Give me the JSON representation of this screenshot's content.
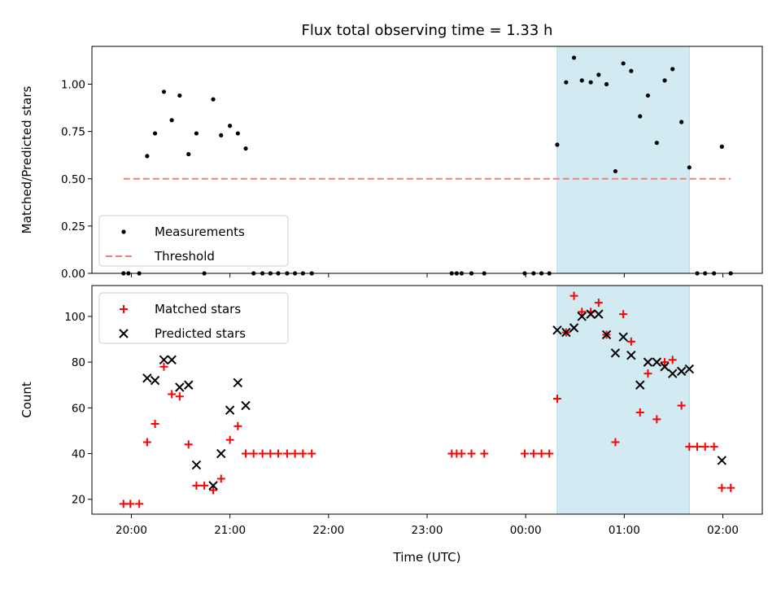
{
  "title": "Flux total observing time = 1.33 h",
  "colors": {
    "shade": "#add8e6",
    "threshold": "#f08080",
    "matched": "#ff0000",
    "predicted": "#000000",
    "measure": "#000000"
  },
  "chart_data": [
    {
      "type": "scatter",
      "ylabel": "Matched/Predicted stars",
      "xlabel": "",
      "xlim": [
        19.6,
        26.4
      ],
      "ylim": [
        0.0,
        1.2
      ],
      "yticks": [
        "0.00",
        "0.25",
        "0.50",
        "0.75",
        "1.00"
      ],
      "yticks_values": [
        0.0,
        0.25,
        0.5,
        0.75,
        1.0
      ],
      "shaded_region": [
        24.32,
        25.66
      ],
      "legend": {
        "position": "lower-left",
        "entries": [
          "Measurements",
          "Threshold"
        ]
      },
      "threshold": {
        "name": "Threshold",
        "y": 0.5,
        "x_range": [
          19.92,
          26.08
        ]
      },
      "series": [
        {
          "name": "Measurements",
          "x": [
            19.92,
            19.97,
            20.08,
            20.16,
            20.24,
            20.33,
            20.41,
            20.49,
            20.58,
            20.66,
            20.74,
            20.83,
            20.91,
            21.0,
            21.08,
            21.16,
            21.24,
            21.33,
            21.41,
            21.49,
            21.58,
            21.66,
            21.74,
            21.83,
            23.25,
            23.3,
            23.35,
            23.45,
            23.58,
            23.99,
            24.08,
            24.16,
            24.24,
            24.32,
            24.41,
            24.49,
            24.57,
            24.66,
            24.74,
            24.82,
            24.91,
            24.99,
            25.07,
            25.16,
            25.24,
            25.33,
            25.41,
            25.49,
            25.58,
            25.66,
            25.74,
            25.82,
            25.91,
            25.99,
            26.08
          ],
          "y": [
            0,
            0,
            0,
            0.62,
            0.74,
            0.96,
            0.81,
            0.94,
            0.63,
            0.74,
            0,
            0.92,
            0.73,
            0.78,
            0.74,
            0.66,
            0,
            0,
            0,
            0,
            0,
            0,
            0,
            0,
            0,
            0,
            0,
            0,
            0,
            0,
            0,
            0,
            0,
            0.68,
            1.01,
            1.14,
            1.02,
            1.01,
            1.05,
            1.0,
            0.54,
            1.11,
            1.07,
            0.83,
            0.94,
            0.69,
            1.02,
            1.08,
            0.8,
            0.56,
            0,
            0,
            0,
            0.67,
            0
          ]
        }
      ]
    },
    {
      "type": "scatter",
      "ylabel": "Count",
      "xlabel": "Time (UTC)",
      "xlim": [
        19.6,
        26.4
      ],
      "ylim": [
        13.5,
        113.5
      ],
      "yticks": [
        "20",
        "40",
        "60",
        "80",
        "100"
      ],
      "yticks_values": [
        20,
        40,
        60,
        80,
        100
      ],
      "xticks": [
        "20:00",
        "21:00",
        "22:00",
        "23:00",
        "00:00",
        "01:00",
        "02:00"
      ],
      "xticks_values": [
        20,
        21,
        22,
        23,
        24,
        25,
        26
      ],
      "shaded_region": [
        24.32,
        25.66
      ],
      "legend": {
        "position": "top-left",
        "entries": [
          "Matched stars",
          "Predicted stars"
        ]
      },
      "series": [
        {
          "name": "Matched stars",
          "x": [
            19.92,
            19.99,
            20.08,
            20.16,
            20.24,
            20.33,
            20.41,
            20.49,
            20.58,
            20.66,
            20.74,
            20.83,
            20.91,
            21.0,
            21.08,
            21.16,
            21.24,
            21.33,
            21.41,
            21.49,
            21.58,
            21.66,
            21.74,
            21.83,
            23.25,
            23.3,
            23.35,
            23.45,
            23.58,
            23.99,
            24.08,
            24.16,
            24.24,
            24.32,
            24.41,
            24.49,
            24.57,
            24.66,
            24.74,
            24.82,
            24.91,
            24.99,
            25.07,
            25.16,
            25.24,
            25.33,
            25.41,
            25.49,
            25.58,
            25.66,
            25.74,
            25.82,
            25.91,
            25.99,
            26.08
          ],
          "y": [
            18,
            18,
            18,
            45,
            53,
            78,
            66,
            65,
            44,
            26,
            26,
            24,
            29,
            46,
            52,
            40,
            40,
            40,
            40,
            40,
            40,
            40,
            40,
            40,
            40,
            40,
            40,
            40,
            40,
            40,
            40,
            40,
            40,
            64,
            93,
            109,
            102,
            102,
            106,
            92,
            45,
            101,
            89,
            58,
            75,
            55,
            80,
            81,
            61,
            43,
            43,
            43,
            43,
            25,
            25
          ]
        },
        {
          "name": "Predicted stars",
          "x": [
            20.16,
            20.24,
            20.33,
            20.41,
            20.49,
            20.58,
            20.66,
            20.83,
            20.91,
            21.0,
            21.08,
            21.16,
            24.32,
            24.41,
            24.49,
            24.57,
            24.66,
            24.74,
            24.82,
            24.91,
            24.99,
            25.07,
            25.16,
            25.24,
            25.33,
            25.41,
            25.49,
            25.58,
            25.66,
            25.99
          ],
          "y": [
            73,
            72,
            81,
            81,
            69,
            70,
            35,
            26,
            40,
            59,
            71,
            61,
            94,
            93,
            95,
            100,
            101,
            101,
            92,
            84,
            91,
            83,
            70,
            80,
            80,
            78,
            75,
            76,
            77,
            37
          ]
        }
      ]
    }
  ]
}
